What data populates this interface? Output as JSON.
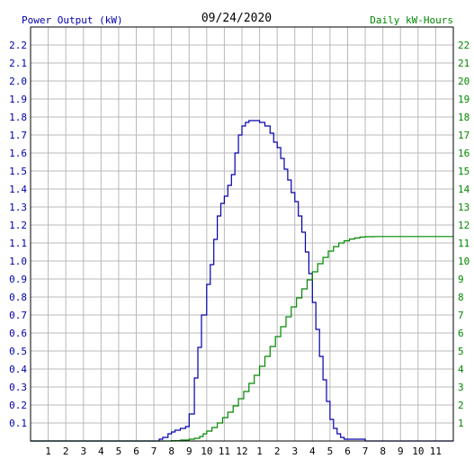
{
  "chart_data": {
    "type": "line",
    "title": "09/24/2020",
    "ylabel_left": "Power Output (kW)",
    "ylabel_right": "Daily kW-Hours",
    "x_tick_labels": [
      "1",
      "2",
      "3",
      "4",
      "5",
      "6",
      "7",
      "8",
      "9",
      "10",
      "11",
      "12",
      "1",
      "2",
      "3",
      "4",
      "5",
      "6",
      "7",
      "8",
      "9",
      "10",
      "11"
    ],
    "x_range_hours": [
      0,
      24
    ],
    "y_left_range": [
      0,
      2.3
    ],
    "y_left_ticks": [
      "0.1",
      "0.2",
      "0.3",
      "0.4",
      "0.5",
      "0.6",
      "0.7",
      "0.8",
      "0.9",
      "1.0",
      "1.1",
      "1.2",
      "1.3",
      "1.4",
      "1.5",
      "1.6",
      "1.7",
      "1.8",
      "1.9",
      "2.0",
      "2.1",
      "2.2"
    ],
    "y_right_range": [
      0,
      23
    ],
    "y_right_ticks": [
      "1",
      "2",
      "3",
      "4",
      "5",
      "6",
      "7",
      "8",
      "9",
      "10",
      "11",
      "12",
      "13",
      "14",
      "15",
      "16",
      "17",
      "18",
      "19",
      "20",
      "21",
      "22"
    ],
    "grid": true,
    "colors": {
      "power": "#0000aa",
      "energy": "#008800",
      "left_axis_text": "#0000aa",
      "right_axis_text": "#008800",
      "grid": "#b8b8b8",
      "frame": "#000000"
    },
    "series": [
      {
        "name": "Power Output (kW)",
        "axis": "left",
        "step": true,
        "x": [
          0,
          7.3,
          7.5,
          7.8,
          8.0,
          8.2,
          8.5,
          8.8,
          9.0,
          9.3,
          9.5,
          9.7,
          10.0,
          10.2,
          10.4,
          10.6,
          10.8,
          11.0,
          11.2,
          11.4,
          11.6,
          11.8,
          12.0,
          12.2,
          12.4,
          12.6,
          12.8,
          13.0,
          13.3,
          13.6,
          13.8,
          14.0,
          14.2,
          14.4,
          14.6,
          14.8,
          15.0,
          15.2,
          15.4,
          15.6,
          15.8,
          16.0,
          16.2,
          16.4,
          16.6,
          16.8,
          17.0,
          17.2,
          17.4,
          17.6,
          17.8,
          18.0,
          18.2,
          18.4,
          18.6,
          18.8,
          19.0,
          19.2,
          19.5,
          20.0,
          20.5,
          24
        ],
        "y": [
          0,
          0.01,
          0.02,
          0.04,
          0.05,
          0.06,
          0.07,
          0.08,
          0.15,
          0.35,
          0.52,
          0.7,
          0.87,
          0.98,
          1.12,
          1.25,
          1.32,
          1.36,
          1.42,
          1.48,
          1.6,
          1.7,
          1.75,
          1.77,
          1.78,
          1.78,
          1.78,
          1.77,
          1.75,
          1.71,
          1.66,
          1.63,
          1.57,
          1.51,
          1.45,
          1.38,
          1.33,
          1.25,
          1.16,
          1.05,
          0.93,
          0.77,
          0.62,
          0.47,
          0.34,
          0.22,
          0.12,
          0.07,
          0.04,
          0.02,
          0.01,
          0.01,
          0.01,
          0.01,
          0.01,
          0.01,
          0.0,
          0.0,
          0.0,
          0.0,
          0.0,
          0.0
        ]
      },
      {
        "name": "Daily kW-Hours",
        "axis": "right",
        "step": true,
        "x": [
          0,
          8.0,
          8.5,
          9.0,
          9.3,
          9.6,
          9.8,
          10.0,
          10.3,
          10.6,
          10.9,
          11.2,
          11.5,
          11.8,
          12.1,
          12.4,
          12.7,
          13.0,
          13.3,
          13.6,
          13.9,
          14.2,
          14.5,
          14.8,
          15.1,
          15.4,
          15.7,
          16.0,
          16.3,
          16.6,
          16.9,
          17.2,
          17.5,
          17.8,
          18.1,
          18.4,
          18.7,
          19.0,
          19.5,
          20.0,
          21.0,
          22.0,
          23.0,
          24
        ],
        "y": [
          0,
          0.02,
          0.05,
          0.1,
          0.15,
          0.25,
          0.4,
          0.55,
          0.75,
          1.0,
          1.3,
          1.6,
          1.95,
          2.35,
          2.75,
          3.2,
          3.65,
          4.15,
          4.7,
          5.25,
          5.8,
          6.35,
          6.9,
          7.45,
          7.95,
          8.45,
          8.95,
          9.4,
          9.85,
          10.2,
          10.55,
          10.8,
          11.0,
          11.12,
          11.22,
          11.28,
          11.33,
          11.35,
          11.36,
          11.36,
          11.36,
          11.36,
          11.36,
          11.36
        ]
      }
    ]
  }
}
